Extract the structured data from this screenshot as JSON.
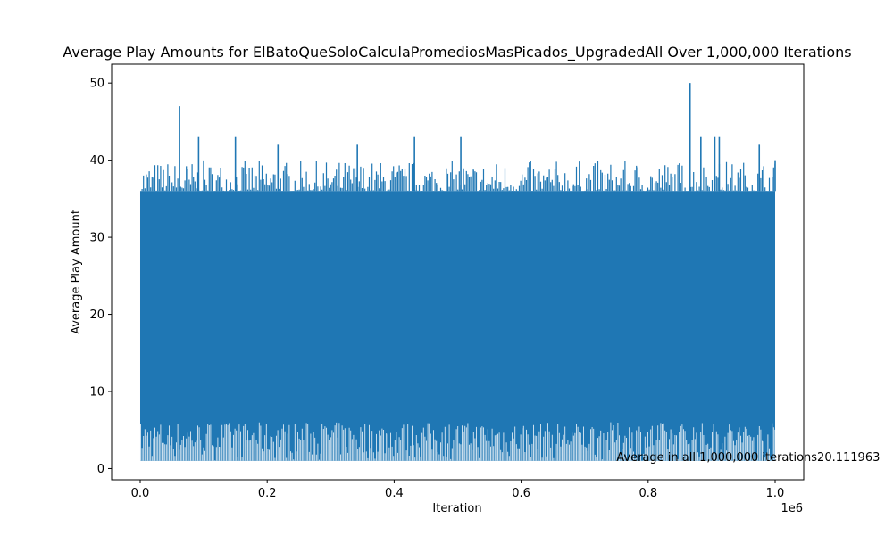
{
  "chart_data": {
    "type": "line",
    "title": "Average Play Amounts for ElBatoQueSoloCalculaPromediosMasPicados_UpgradedAll Over 1,000,000 Iterations",
    "xlabel": "Iteration",
    "ylabel": "Average Play Amount",
    "x_offset_label": "1e6",
    "xlim": [
      -45000,
      1045000
    ],
    "ylim": [
      -1.45,
      52.45
    ],
    "x_ticks": [
      {
        "value": 0,
        "label": "0.0"
      },
      {
        "value": 200000,
        "label": "0.2"
      },
      {
        "value": 400000,
        "label": "0.4"
      },
      {
        "value": 600000,
        "label": "0.6"
      },
      {
        "value": 800000,
        "label": "0.8"
      },
      {
        "value": 1000000,
        "label": "1.0"
      }
    ],
    "y_ticks": [
      {
        "value": 0,
        "label": "0"
      },
      {
        "value": 10,
        "label": "10"
      },
      {
        "value": 20,
        "label": "20"
      },
      {
        "value": 30,
        "label": "30"
      },
      {
        "value": 40,
        "label": "40"
      },
      {
        "value": 50,
        "label": "50"
      }
    ],
    "grid": false,
    "legend": "none",
    "series_color": "#1f77b4",
    "band": {
      "x_start": 0,
      "x_end": 1000000,
      "y_low": 1,
      "y_high": 36
    },
    "peaks": [
      {
        "x": 62000,
        "y": 47
      },
      {
        "x": 92000,
        "y": 43
      },
      {
        "x": 150000,
        "y": 43
      },
      {
        "x": 217000,
        "y": 42
      },
      {
        "x": 342000,
        "y": 42
      },
      {
        "x": 432000,
        "y": 43
      },
      {
        "x": 505000,
        "y": 43
      },
      {
        "x": 866000,
        "y": 50
      },
      {
        "x": 883000,
        "y": 43
      },
      {
        "x": 905000,
        "y": 43
      },
      {
        "x": 912000,
        "y": 43
      },
      {
        "x": 975000,
        "y": 42
      },
      {
        "x": 1000000,
        "y": 40
      }
    ],
    "annotation": {
      "text": "Average in all 1,000,000 iterations20.111963",
      "x": 750000,
      "y": 1
    }
  }
}
